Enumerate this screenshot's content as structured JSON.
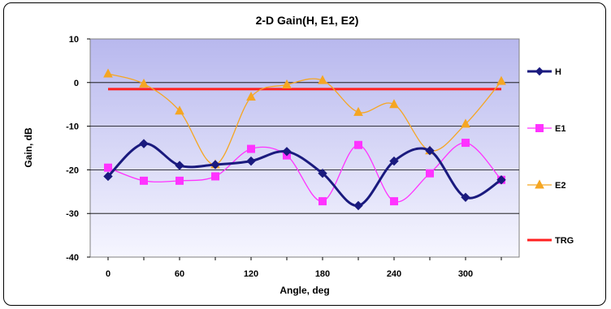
{
  "chart_data": {
    "type": "line",
    "title": "2-D Gain(H, E1, E2)",
    "xlabel": "Angle, deg",
    "ylabel": "Gain, dB",
    "xlim": [
      -15,
      345
    ],
    "ylim": [
      -40,
      10
    ],
    "x_ticks": [
      0,
      60,
      120,
      180,
      240,
      300
    ],
    "y_ticks": [
      10,
      0,
      -10,
      -20,
      -30,
      -40
    ],
    "grid": "horizontal major gridlines",
    "legend_position": "right",
    "x": [
      0,
      30,
      60,
      90,
      120,
      150,
      180,
      210,
      240,
      270,
      300,
      330
    ],
    "series": [
      {
        "name": "H",
        "color": "#1a1a7e",
        "marker": "diamond",
        "smooth": true,
        "values": [
          -21.5,
          -14,
          -19,
          -18.8,
          -18,
          -15.8,
          -20.8,
          -28.2,
          -18,
          -15.6,
          -26.3,
          -22.3
        ]
      },
      {
        "name": "E1",
        "color": "#ff33ff",
        "marker": "square",
        "smooth": true,
        "values": [
          -19.5,
          -22.5,
          -22.5,
          -21.5,
          -15.2,
          -16.7,
          -27.2,
          -14.3,
          -27.2,
          -20.8,
          -13.8,
          -22.3
        ]
      },
      {
        "name": "E2",
        "color": "#f5a623",
        "marker": "triangle",
        "smooth": true,
        "values": [
          2,
          -0.3,
          -6.5,
          -18.8,
          -3.3,
          -0.5,
          0.5,
          -6.8,
          -5,
          -15.6,
          -9.5,
          0.3
        ]
      },
      {
        "name": "TRG",
        "color": "#ff2020",
        "marker": "none",
        "smooth": false,
        "values": [
          -1.5,
          -1.5,
          -1.5,
          -1.5,
          -1.5,
          -1.5,
          -1.5,
          -1.5,
          -1.5,
          -1.5,
          -1.5,
          -1.5
        ]
      }
    ]
  }
}
